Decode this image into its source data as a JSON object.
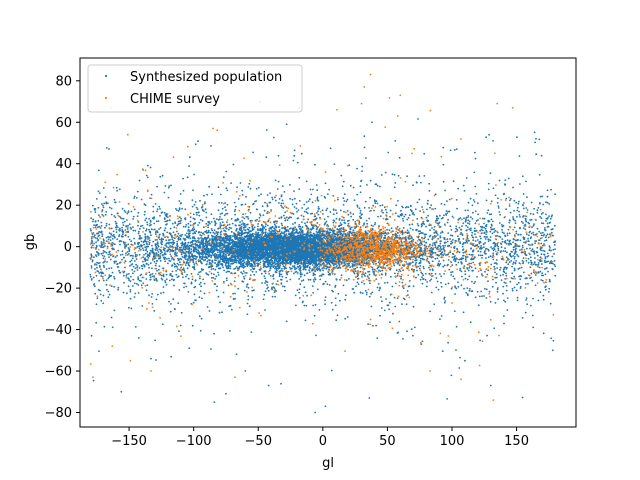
{
  "chart_data": {
    "type": "scatter",
    "title": "",
    "xlabel": "gl",
    "ylabel": "gb",
    "xlim": [
      -188,
      196
    ],
    "ylim": [
      -87,
      91
    ],
    "xticks": [
      -150,
      -100,
      -50,
      0,
      50,
      100,
      150
    ],
    "yticks": [
      -80,
      -60,
      -40,
      -20,
      0,
      20,
      40,
      60,
      80
    ],
    "xtick_labels": [
      "−150",
      "−100",
      "−50",
      "0",
      "50",
      "100",
      "150"
    ],
    "ytick_labels": [
      "−80",
      "−60",
      "−40",
      "−20",
      "0",
      "20",
      "40",
      "60",
      "80"
    ],
    "grid": false,
    "legend_position": "top-left",
    "series": [
      {
        "name": "Synthesized population",
        "color": "#1f77b4",
        "marker": "point",
        "distribution": {
          "core": {
            "gl_mean": -20,
            "gl_sd": 40,
            "gb_mean": -1,
            "gb_sd": 4,
            "count": 9000
          },
          "disk": {
            "gl_range": [
              -180,
              180
            ],
            "gb_sd": 12,
            "count": 3500
          },
          "halo": {
            "gl_range": [
              -180,
              180
            ],
            "gb_sd": 25,
            "count": 600
          }
        },
        "points": [
          [
            -42,
            -67
          ],
          [
            -75,
            -71
          ],
          [
            -84,
            -75
          ],
          [
            2,
            -77
          ],
          [
            -6,
            -80
          ],
          [
            -28,
            59
          ],
          [
            38,
            60
          ],
          [
            -156,
            -70
          ],
          [
            -133,
            -54
          ],
          [
            -179,
            -43
          ],
          [
            110,
            -55
          ],
          [
            -60,
            -60
          ],
          [
            130,
            -67
          ],
          [
            -18,
            67
          ],
          [
            178,
            -50
          ],
          [
            165,
            52
          ],
          [
            36,
            -73
          ]
        ]
      },
      {
        "name": "CHIME survey",
        "color": "#ff7f0e",
        "marker": "point",
        "distribution": {
          "core": {
            "gl_mean": 38,
            "gl_sd": 20,
            "gb_mean": -1,
            "gb_sd": 5,
            "count": 900
          },
          "disk": {
            "gl_range": [
              -180,
              180
            ],
            "gb_sd": 10,
            "count": 400
          },
          "halo": {
            "gl_range": [
              -180,
              180
            ],
            "gb_sd": 25,
            "count": 180
          }
        },
        "points": [
          [
            37,
            83
          ],
          [
            60,
            73
          ],
          [
            32,
            77
          ],
          [
            30,
            69
          ],
          [
            135,
            69
          ],
          [
            147,
            67
          ],
          [
            11,
            66
          ],
          [
            -85,
            57
          ],
          [
            -151,
            54
          ],
          [
            58,
            63
          ],
          [
            -178,
            -63
          ],
          [
            -149,
            -55
          ],
          [
            -133,
            -60
          ],
          [
            132,
            -74
          ],
          [
            107,
            -64
          ],
          [
            83,
            -60
          ],
          [
            -68,
            -63
          ],
          [
            -163,
            -48
          ]
        ]
      }
    ]
  }
}
